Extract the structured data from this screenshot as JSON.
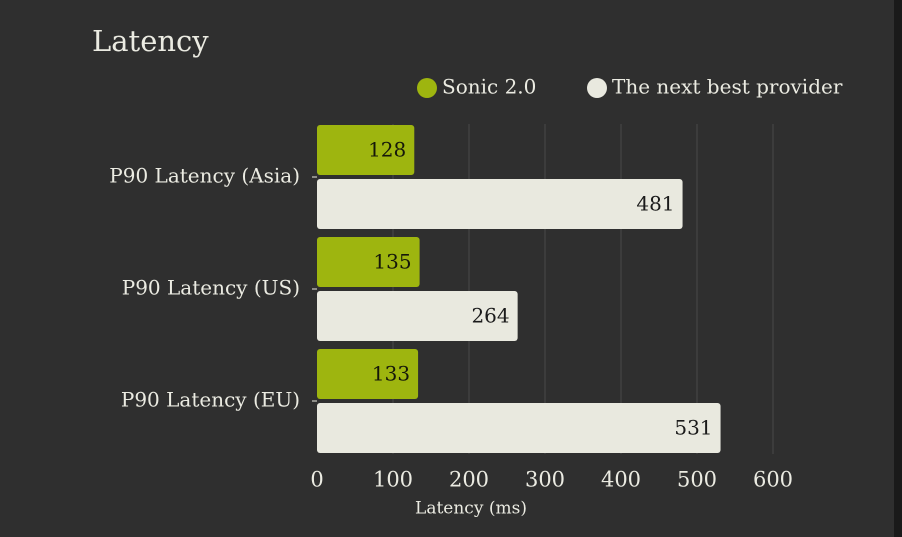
{
  "chart_data": {
    "type": "bar",
    "orientation": "horizontal",
    "title": "Latency",
    "categories": [
      "P90 Latency (Asia)",
      "P90 Latency (US)",
      "P90 Latency (EU)"
    ],
    "series": [
      {
        "name": "Sonic 2.0",
        "values": [
          128,
          135,
          133
        ],
        "color": "#9eb50f",
        "label_color": "#15170a"
      },
      {
        "name": "The next best provider",
        "values": [
          481,
          264,
          531
        ],
        "color": "#e9e9df",
        "label_color": "#1a1a1a"
      }
    ],
    "xlabel": "Latency (ms)",
    "ylabel": "",
    "xlim": [
      0,
      600
    ],
    "xticks": [
      "0",
      "100",
      "200",
      "300",
      "400",
      "500",
      "600"
    ],
    "grid": "vertical",
    "legend_position": "top-right"
  },
  "colors": {
    "background": "#2f2f2f",
    "gridline": "#494949",
    "text": "#ebebe2"
  }
}
